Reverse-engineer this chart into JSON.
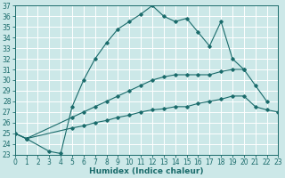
{
  "xlabel": "Humidex (Indice chaleur)",
  "bg_color": "#cce8e8",
  "grid_color": "#ffffff",
  "line_color": "#1a6b6b",
  "x_top": [
    0,
    1,
    3,
    4,
    5,
    6,
    7,
    8,
    9,
    10,
    11,
    12,
    13,
    14,
    15,
    16,
    17,
    18,
    19,
    20
  ],
  "y_top": [
    25.0,
    24.5,
    23.3,
    23.1,
    27.5,
    30.0,
    32.0,
    33.5,
    34.8,
    35.5,
    36.2,
    37.0,
    36.0,
    35.5,
    35.8,
    34.5,
    33.2,
    35.5,
    32.0,
    31.0
  ],
  "x_mid": [
    0,
    1,
    5,
    6,
    7,
    8,
    9,
    10,
    11,
    12,
    13,
    14,
    15,
    16,
    17,
    18,
    19,
    20,
    21,
    22
  ],
  "y_mid": [
    25.0,
    24.5,
    26.5,
    27.0,
    27.5,
    28.0,
    28.5,
    29.0,
    29.5,
    30.0,
    30.3,
    30.5,
    30.5,
    30.5,
    30.5,
    30.8,
    31.0,
    31.0,
    29.5,
    28.0
  ],
  "x_bot": [
    0,
    1,
    5,
    6,
    7,
    8,
    9,
    10,
    11,
    12,
    13,
    14,
    15,
    16,
    17,
    18,
    19,
    20,
    21,
    22,
    23
  ],
  "y_bot": [
    25.0,
    24.5,
    25.5,
    25.7,
    26.0,
    26.2,
    26.5,
    26.7,
    27.0,
    27.2,
    27.3,
    27.5,
    27.5,
    27.8,
    28.0,
    28.2,
    28.5,
    28.5,
    27.5,
    27.2,
    27.0
  ],
  "ylim": [
    23,
    37
  ],
  "xlim": [
    0,
    23
  ],
  "yticks": [
    23,
    24,
    25,
    26,
    27,
    28,
    29,
    30,
    31,
    32,
    33,
    34,
    35,
    36,
    37
  ],
  "xticks": [
    0,
    1,
    2,
    3,
    4,
    5,
    6,
    7,
    8,
    9,
    10,
    11,
    12,
    13,
    14,
    15,
    16,
    17,
    18,
    19,
    20,
    21,
    22,
    23
  ],
  "tick_fontsize": 5.5,
  "xlabel_fontsize": 6.5
}
